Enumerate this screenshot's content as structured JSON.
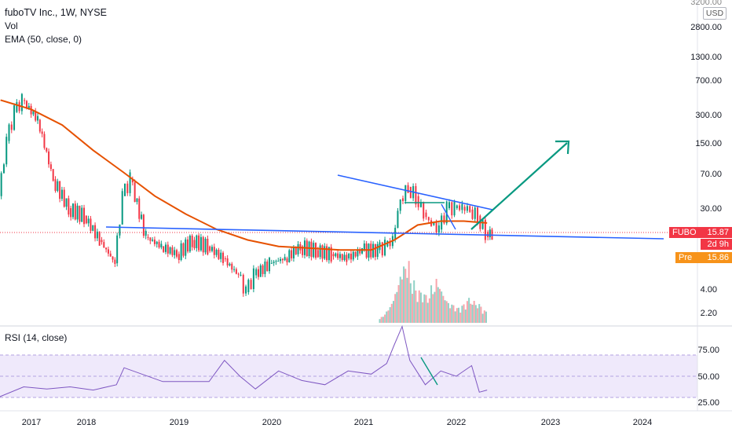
{
  "header": {
    "title": "fuboTV Inc., 1W, NYSE",
    "vol_label": "Vol",
    "ema_label": "EMA (50, close, 0)",
    "rsi_label": "RSI (14, close)",
    "currency": "USD"
  },
  "price_tags": {
    "symbol": "FUBO",
    "last_price": "15.87",
    "time_to_close": "2d 9h",
    "pre_label": "Pre",
    "pre_price": "15.86"
  },
  "chart_data": [
    {
      "type": "candlestick",
      "title": "fuboTV Inc., 1W, NYSE",
      "y_scale": "log",
      "y_axis_ticks": [
        "3200.00",
        "2800.00",
        "1300.00",
        "700.00",
        "300.00",
        "150.00",
        "70.00",
        "30.00",
        "4.00",
        "2.20"
      ],
      "x_axis_ticks": [
        "2017",
        "2018",
        "2019",
        "2020",
        "2021",
        "2022",
        "2023",
        "2024"
      ],
      "price_series": {
        "name": "FUBO",
        "dates": [
          "2016-08",
          "2016-09",
          "2016-10",
          "2016-11",
          "2016-12",
          "2017-02",
          "2017-04",
          "2017-06",
          "2017-08",
          "2017-10",
          "2017-12",
          "2018-01",
          "2018-02",
          "2018-04",
          "2018-06",
          "2018-08",
          "2018-10",
          "2018-12",
          "2019-02",
          "2019-04",
          "2019-05",
          "2019-06",
          "2019-08",
          "2019-10",
          "2019-12",
          "2020-02",
          "2020-04",
          "2020-06",
          "2020-08",
          "2020-10",
          "2020-11",
          "2020-12",
          "2021-01",
          "2021-02",
          "2021-03",
          "2021-04",
          "2021-05",
          "2021-06",
          "2021-07",
          "2021-08",
          "2021-09",
          "2021-10",
          "2021-11",
          "2021-12"
        ],
        "close": [
          40,
          150,
          300,
          400,
          250,
          60,
          30,
          25,
          14,
          8,
          40,
          60,
          15,
          12,
          10,
          14,
          12,
          9,
          6,
          4,
          6,
          8,
          9,
          12,
          11,
          10,
          9,
          11,
          11,
          12,
          14,
          38,
          50,
          40,
          27,
          20,
          18,
          30,
          30,
          31,
          29,
          25,
          17,
          15.87
        ]
      },
      "ema_series": {
        "name": "EMA (50, close, 0)",
        "dates": [
          "2016-09",
          "2017-01",
          "2017-05",
          "2017-09",
          "2018-01",
          "2018-05",
          "2018-09",
          "2019-01",
          "2019-05",
          "2019-09",
          "2020-01",
          "2020-05",
          "2020-09",
          "2020-12",
          "2021-03",
          "2021-06",
          "2021-09",
          "2021-12"
        ],
        "values": [
          400,
          320,
          220,
          120,
          70,
          40,
          26,
          18,
          14,
          12,
          11.5,
          11,
          11,
          14,
          20,
          22,
          22,
          21
        ]
      },
      "volume": {
        "name": "Vol",
        "relative_values": [
          0.1,
          0.2,
          0.35,
          0.6,
          0.9,
          1.0,
          0.7,
          0.55,
          0.5,
          0.45,
          0.6,
          0.7,
          0.5,
          0.35,
          0.3,
          0.25,
          0.3,
          0.4,
          0.35,
          0.3,
          0.2
        ]
      },
      "annotations": {
        "upper_trendline": [
          [
            "2020-11",
            60
          ],
          [
            "2022-03",
            30
          ]
        ],
        "lower_trendline": [
          [
            "2018-03",
            18
          ],
          [
            "2024-12",
            15
          ]
        ],
        "rectangle_line": [
          [
            "2021-05",
            30
          ],
          [
            "2021-09",
            30
          ]
        ],
        "arrow": [
          [
            "2022-01",
            16
          ],
          [
            "2023-02",
            140
          ]
        ]
      }
    },
    {
      "type": "line",
      "title": "RSI (14, close)",
      "y_axis_ticks": [
        "75.00",
        "50.00",
        "25.00"
      ],
      "bands": [
        30,
        70
      ],
      "dates": [
        "2016-08",
        "2016-12",
        "2017-03",
        "2017-06",
        "2017-09",
        "2017-12",
        "2018-01",
        "2018-06",
        "2018-12",
        "2019-02",
        "2019-04",
        "2019-06",
        "2019-09",
        "2019-12",
        "2020-03",
        "2020-06",
        "2020-09",
        "2020-11",
        "2020-12",
        "2021-01",
        "2021-02",
        "2021-04",
        "2021-06",
        "2021-08",
        "2021-10",
        "2021-11",
        "2021-12"
      ],
      "values": [
        28,
        40,
        38,
        40,
        37,
        42,
        58,
        45,
        45,
        65,
        50,
        38,
        55,
        46,
        42,
        55,
        52,
        62,
        80,
        97,
        65,
        42,
        55,
        50,
        60,
        35,
        37
      ]
    }
  ]
}
